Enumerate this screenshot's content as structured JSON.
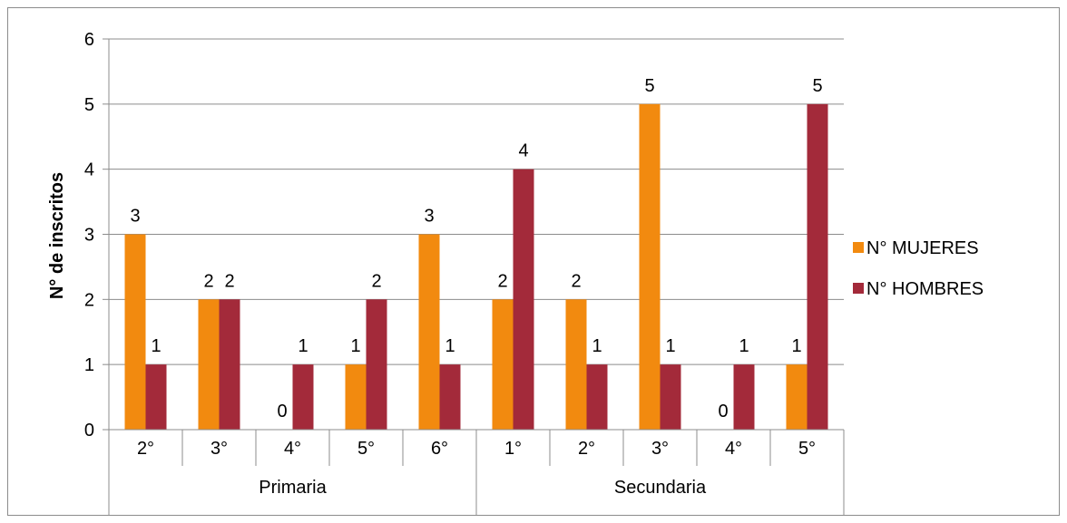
{
  "chart_data": {
    "type": "bar",
    "title": "",
    "xlabel": "",
    "ylabel": "N° de inscritos",
    "ylim": [
      0,
      6
    ],
    "yticks": [
      0,
      1,
      2,
      3,
      4,
      5,
      6
    ],
    "grid": true,
    "legend_position": "right",
    "groups": [
      {
        "label": "Primaria",
        "categories": [
          "2°",
          "3°",
          "4°",
          "5°",
          "6°"
        ]
      },
      {
        "label": "Secundaria",
        "categories": [
          "1°",
          "2°",
          "3°",
          "4°",
          "5°"
        ]
      }
    ],
    "categories": [
      "2°",
      "3°",
      "4°",
      "5°",
      "6°",
      "1°",
      "2°",
      "3°",
      "4°",
      "5°"
    ],
    "series": [
      {
        "name": "N° MUJERES",
        "color": "#F28A0F",
        "values": [
          3,
          2,
          0,
          1,
          3,
          2,
          2,
          5,
          0,
          1
        ]
      },
      {
        "name": "N° HOMBRES",
        "color": "#A32A3A",
        "values": [
          1,
          2,
          1,
          2,
          1,
          4,
          1,
          1,
          1,
          5
        ]
      }
    ]
  }
}
